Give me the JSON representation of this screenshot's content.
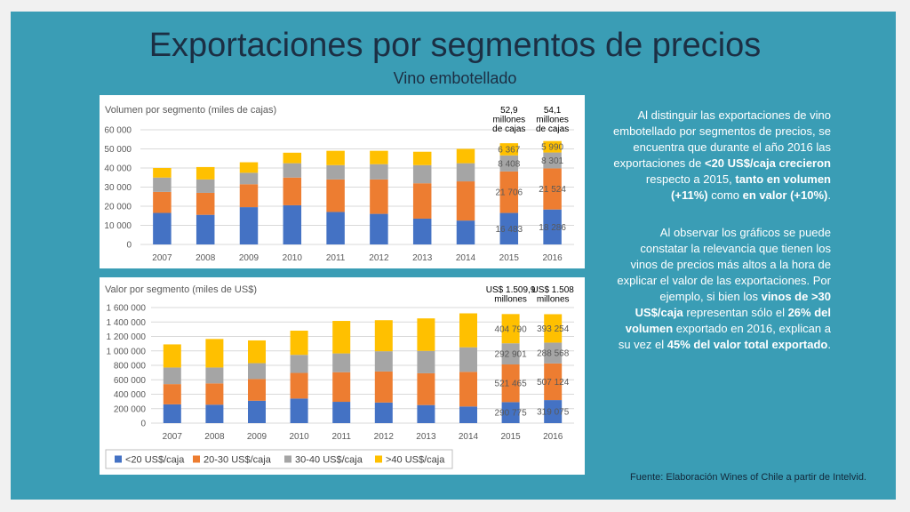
{
  "slide": {
    "title": "Exportaciones por segmentos de precios",
    "subtitle": "Vino embotellado",
    "paragraph1": {
      "t1": "Al distinguir las exportaciones de vino embotellado por segmentos de precios, se encuentra que durante el año 2016 las exportaciones de ",
      "b1": "<20 US$/caja crecieron",
      "t2": " respecto a 2015, ",
      "b2": "tanto en volumen (+11%)",
      "t3": " como ",
      "b3": "en valor (+10%)",
      "t4": "."
    },
    "paragraph2": {
      "t1": "Al observar los gráficos se puede constatar la relevancia que tienen los vinos de precios más altos a la hora de explicar el valor de las exportaciones. Por ejemplo, si bien los ",
      "b1": "vinos de >30 US$/caja",
      "t2": " representan sólo el ",
      "b2": "26% del volumen",
      "t3": " exportado en 2016, explican a su vez el ",
      "b3": "45% del valor total exportado",
      "t4": "."
    },
    "source": "Fuente: Elaboración Wines of Chile a partir de Intelvid."
  },
  "colors": {
    "background": "#3a9db5",
    "series": [
      "#4472c4",
      "#ed7d31",
      "#a5a5a5",
      "#ffc000"
    ],
    "text": "#595959"
  },
  "chart_data": [
    {
      "type": "bar",
      "stacked": true,
      "title": "Volumen por segmento (miles de cajas)",
      "categories": [
        "2007",
        "2008",
        "2009",
        "2010",
        "2011",
        "2012",
        "2013",
        "2014",
        "2015",
        "2016"
      ],
      "series": [
        {
          "name": "<20 US$/caja",
          "values": [
            16500,
            15500,
            19500,
            20500,
            17000,
            16000,
            13500,
            12500,
            16483,
            18286
          ]
        },
        {
          "name": "20-30 US$/caja",
          "values": [
            11000,
            11500,
            12000,
            14500,
            17000,
            18000,
            18500,
            20500,
            21706,
            21524
          ]
        },
        {
          "name": "30-40 US$/caja",
          "values": [
            7500,
            7000,
            6000,
            7500,
            7500,
            8000,
            9500,
            9500,
            8408,
            8301
          ]
        },
        {
          "name": ">40 US$/caja",
          "values": [
            5000,
            6500,
            5500,
            5500,
            7500,
            7000,
            7000,
            7500,
            6367,
            5990
          ]
        }
      ],
      "ylim": [
        0,
        60000
      ],
      "yticks": [
        "0",
        "10 000",
        "20 000",
        "30 000",
        "40 000",
        "50 000",
        "60 000"
      ],
      "yticks_values": [
        0,
        10000,
        20000,
        30000,
        40000,
        50000,
        60000
      ],
      "data_labels": {
        "2015": [
          "16 483",
          "21 706",
          "8 408",
          "6 367"
        ],
        "2016": [
          "18 286",
          "21 524",
          "8 301",
          "5 990"
        ]
      },
      "totals": {
        "2015": [
          "52,9",
          "millones",
          "de cajas"
        ],
        "2016": [
          "54,1",
          "millones",
          "de cajas"
        ]
      }
    },
    {
      "type": "bar",
      "stacked": true,
      "title": "Valor por segmento (miles de US$)",
      "categories": [
        "2007",
        "2008",
        "2009",
        "2010",
        "2011",
        "2012",
        "2013",
        "2014",
        "2015",
        "2016"
      ],
      "series": [
        {
          "name": "<20 US$/caja",
          "values": [
            260000,
            255000,
            310000,
            340000,
            295000,
            285000,
            250000,
            230000,
            290775,
            319075
          ]
        },
        {
          "name": "20-30 US$/caja",
          "values": [
            280000,
            295000,
            300000,
            355000,
            410000,
            430000,
            440000,
            480000,
            521465,
            507124
          ]
        },
        {
          "name": "30-40 US$/caja",
          "values": [
            230000,
            220000,
            220000,
            250000,
            260000,
            280000,
            310000,
            340000,
            292901,
            288568
          ]
        },
        {
          "name": ">40 US$/caja",
          "values": [
            320000,
            395000,
            315000,
            335000,
            450000,
            430000,
            450000,
            470000,
            404790,
            393254
          ]
        }
      ],
      "ylim": [
        0,
        1600000
      ],
      "yticks": [
        "0",
        "200 000",
        "400 000",
        "600 000",
        "800 000",
        "1 000 000",
        "1 200 000",
        "1 400 000",
        "1 600 000"
      ],
      "yticks_values": [
        0,
        200000,
        400000,
        600000,
        800000,
        1000000,
        1200000,
        1400000,
        1600000
      ],
      "data_labels": {
        "2015": [
          "290 775",
          "521 465",
          "292 901",
          "404 790"
        ],
        "2016": [
          "319 075",
          "507 124",
          "288 568",
          "393 254"
        ]
      },
      "totals": {
        "2015": [
          "US$ 1.509,9",
          "millones"
        ],
        "2016": [
          "US$ 1.508",
          "millones"
        ]
      },
      "legend": {
        "position": "bottom",
        "labels": [
          "<20 US$/caja",
          "20-30 US$/caja",
          "30-40 US$/caja",
          ">40 US$/caja"
        ]
      }
    }
  ]
}
